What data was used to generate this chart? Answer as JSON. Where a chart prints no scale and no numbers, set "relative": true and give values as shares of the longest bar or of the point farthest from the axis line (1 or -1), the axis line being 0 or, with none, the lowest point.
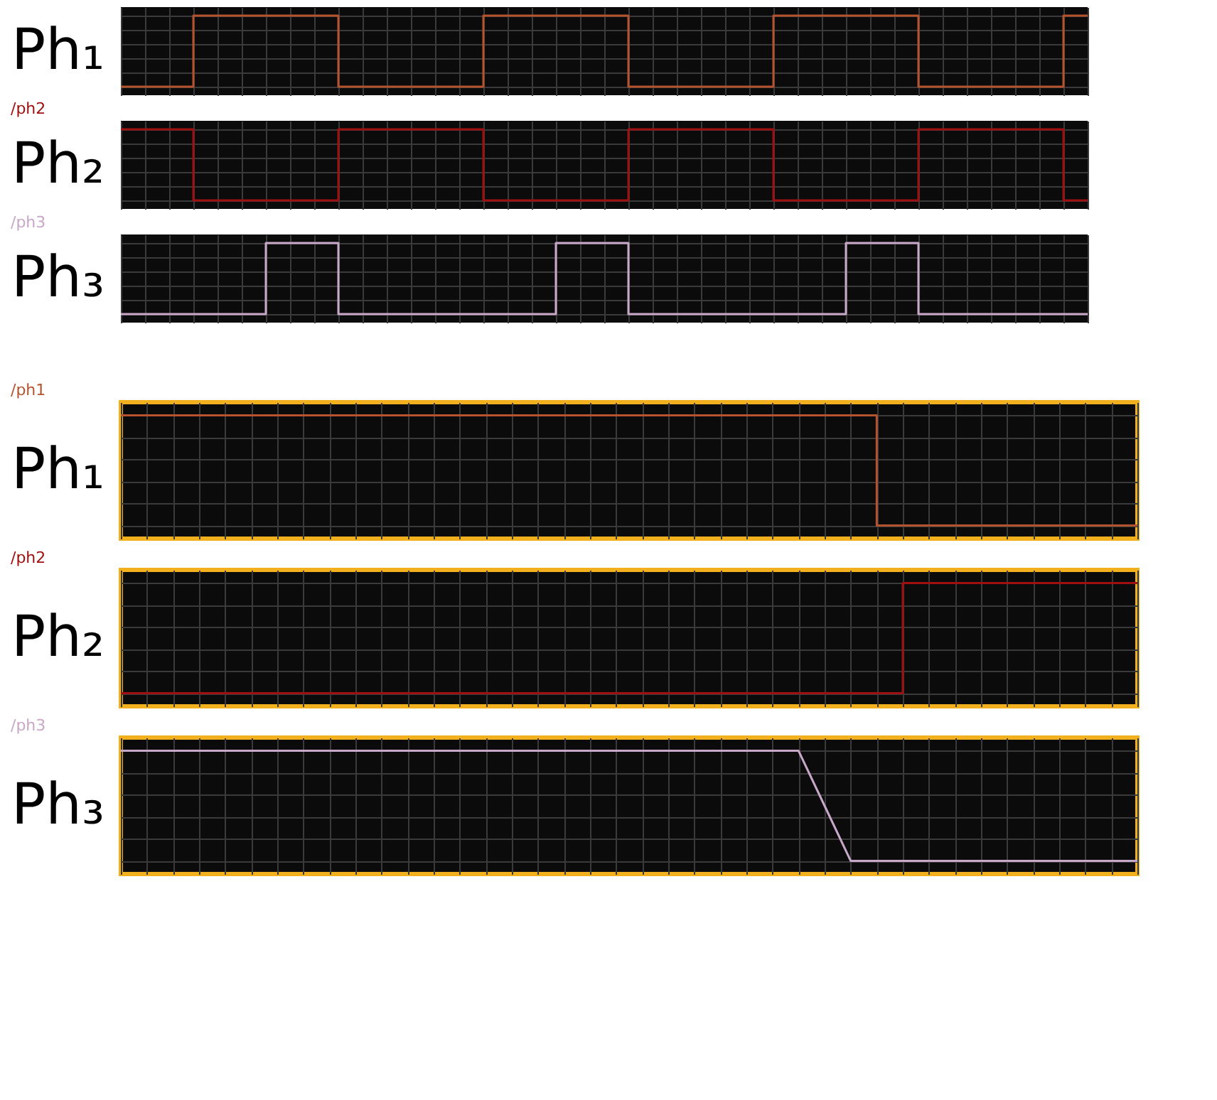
{
  "chart_data": [
    {
      "type": "step",
      "relative": true,
      "grid": true,
      "ylabel": "Ph₁",
      "categories": [
        null,
        null,
        null,
        null,
        null,
        null,
        null,
        null,
        null,
        null,
        null,
        null,
        null,
        null,
        null,
        null,
        null,
        null,
        null,
        null,
        null,
        null,
        null,
        null,
        null,
        null,
        null,
        null,
        null,
        null,
        null,
        null,
        null,
        null,
        null,
        null,
        null,
        null,
        null,
        null,
        null
      ],
      "series": [
        {
          "color": "#b5532e",
          "values": [
            0,
            0,
            0,
            1,
            1,
            1,
            1,
            1,
            1,
            0,
            0,
            0,
            0,
            0,
            0,
            1,
            1,
            1,
            1,
            1,
            1,
            0,
            0,
            0,
            0,
            0,
            0,
            1,
            1,
            1,
            1,
            1,
            1,
            0,
            0,
            0,
            0,
            0,
            0,
            1,
            1
          ]
        }
      ]
    },
    {
      "type": "step",
      "relative": true,
      "grid": true,
      "ylabel": "Ph₂",
      "categories": [
        null,
        null,
        null,
        null,
        null,
        null,
        null,
        null,
        null,
        null,
        null,
        null,
        null,
        null,
        null,
        null,
        null,
        null,
        null,
        null,
        null,
        null,
        null,
        null,
        null,
        null,
        null,
        null,
        null,
        null,
        null,
        null,
        null,
        null,
        null,
        null,
        null,
        null,
        null,
        null,
        null
      ],
      "series": [
        {
          "name": "/ph2",
          "color": "#a01010",
          "values": [
            1,
            1,
            1,
            0,
            0,
            0,
            0,
            0,
            0,
            1,
            1,
            1,
            1,
            1,
            1,
            0,
            0,
            0,
            0,
            0,
            0,
            1,
            1,
            1,
            1,
            1,
            1,
            0,
            0,
            0,
            0,
            0,
            0,
            1,
            1,
            1,
            1,
            1,
            1,
            0,
            0
          ]
        }
      ]
    },
    {
      "type": "step",
      "relative": true,
      "grid": true,
      "ylabel": "Ph₃",
      "categories": [
        null,
        null,
        null,
        null,
        null,
        null,
        null,
        null,
        null,
        null,
        null,
        null,
        null,
        null,
        null,
        null,
        null,
        null,
        null,
        null,
        null,
        null,
        null,
        null,
        null,
        null,
        null,
        null,
        null,
        null,
        null,
        null,
        null,
        null,
        null,
        null,
        null,
        null,
        null,
        null,
        null
      ],
      "series": [
        {
          "name": "/ph3",
          "color": "#c8a8c8",
          "values": [
            0,
            0,
            0,
            0,
            0,
            0,
            1,
            1,
            1,
            0,
            0,
            0,
            0,
            0,
            0,
            0,
            0,
            0,
            1,
            1,
            1,
            0,
            0,
            0,
            0,
            0,
            0,
            0,
            0,
            0,
            1,
            1,
            1,
            0,
            0,
            0,
            0,
            0,
            0,
            0,
            0
          ]
        }
      ]
    },
    {
      "type": "step",
      "relative": true,
      "grid": true,
      "ylabel": "Ph₁",
      "categories": [
        null,
        null,
        null,
        null,
        null,
        null,
        null,
        null,
        null,
        null,
        null,
        null,
        null,
        null,
        null,
        null,
        null,
        null,
        null,
        null,
        null,
        null,
        null,
        null,
        null,
        null,
        null,
        null,
        null,
        null,
        null,
        null,
        null,
        null,
        null,
        null,
        null,
        null,
        null,
        null
      ],
      "series": [
        {
          "name": "/ph1",
          "color": "#b5532e",
          "values": [
            1,
            1,
            1,
            1,
            1,
            1,
            1,
            1,
            1,
            1,
            1,
            1,
            1,
            1,
            1,
            1,
            1,
            1,
            1,
            1,
            1,
            1,
            1,
            1,
            1,
            1,
            1,
            1,
            1,
            0,
            0,
            0,
            0,
            0,
            0,
            0,
            0,
            0,
            0,
            0
          ]
        }
      ]
    },
    {
      "type": "step",
      "relative": true,
      "grid": true,
      "ylabel": "Ph₂",
      "categories": [
        null,
        null,
        null,
        null,
        null,
        null,
        null,
        null,
        null,
        null,
        null,
        null,
        null,
        null,
        null,
        null,
        null,
        null,
        null,
        null,
        null,
        null,
        null,
        null,
        null,
        null,
        null,
        null,
        null,
        null,
        null,
        null,
        null,
        null,
        null,
        null,
        null,
        null,
        null,
        null
      ],
      "series": [
        {
          "name": "/ph2",
          "color": "#a01010",
          "values": [
            0,
            0,
            0,
            0,
            0,
            0,
            0,
            0,
            0,
            0,
            0,
            0,
            0,
            0,
            0,
            0,
            0,
            0,
            0,
            0,
            0,
            0,
            0,
            0,
            0,
            0,
            0,
            0,
            0,
            0,
            1,
            1,
            1,
            1,
            1,
            1,
            1,
            1,
            1,
            1
          ]
        }
      ]
    },
    {
      "type": "line",
      "relative": true,
      "grid": true,
      "ylabel": "Ph₃",
      "categories": [
        null,
        null,
        null,
        null,
        null,
        null,
        null,
        null,
        null,
        null,
        null,
        null,
        null,
        null,
        null,
        null,
        null,
        null,
        null,
        null,
        null,
        null,
        null,
        null,
        null,
        null,
        null,
        null,
        null,
        null,
        null,
        null,
        null,
        null,
        null,
        null,
        null,
        null,
        null,
        null
      ],
      "series": [
        {
          "name": "/ph3",
          "color": "#c8a8c8",
          "values": [
            1,
            1,
            1,
            1,
            1,
            1,
            1,
            1,
            1,
            1,
            1,
            1,
            1,
            1,
            1,
            1,
            1,
            1,
            1,
            1,
            1,
            1,
            1,
            1,
            1,
            1,
            1,
            0.5,
            0,
            0,
            0,
            0,
            0,
            0,
            0,
            0,
            0,
            0,
            0,
            0
          ]
        }
      ]
    }
  ]
}
